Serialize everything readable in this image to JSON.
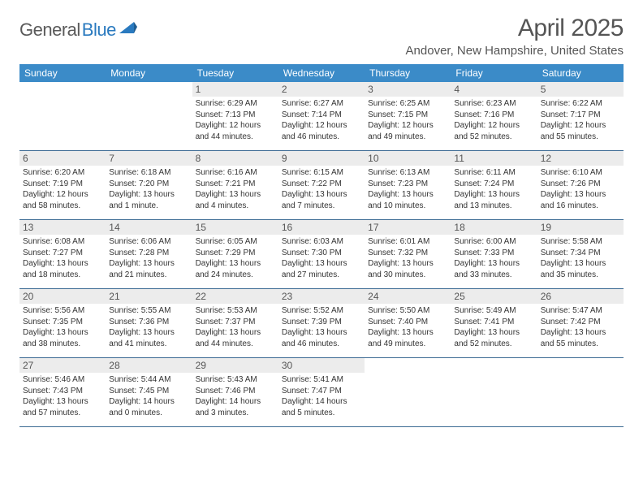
{
  "logo": {
    "text1": "General",
    "text2": "Blue"
  },
  "title": "April 2025",
  "location": "Andover, New Hampshire, United States",
  "header_bg": "#3b8bc8",
  "daynum_bg": "#ececec",
  "border_color": "#3b6a93",
  "dow": [
    "Sunday",
    "Monday",
    "Tuesday",
    "Wednesday",
    "Thursday",
    "Friday",
    "Saturday"
  ],
  "grid": [
    [
      null,
      null,
      {
        "n": "1",
        "sr": "6:29 AM",
        "ss": "7:13 PM",
        "dl": "12 hours and 44 minutes."
      },
      {
        "n": "2",
        "sr": "6:27 AM",
        "ss": "7:14 PM",
        "dl": "12 hours and 46 minutes."
      },
      {
        "n": "3",
        "sr": "6:25 AM",
        "ss": "7:15 PM",
        "dl": "12 hours and 49 minutes."
      },
      {
        "n": "4",
        "sr": "6:23 AM",
        "ss": "7:16 PM",
        "dl": "12 hours and 52 minutes."
      },
      {
        "n": "5",
        "sr": "6:22 AM",
        "ss": "7:17 PM",
        "dl": "12 hours and 55 minutes."
      }
    ],
    [
      {
        "n": "6",
        "sr": "6:20 AM",
        "ss": "7:19 PM",
        "dl": "12 hours and 58 minutes."
      },
      {
        "n": "7",
        "sr": "6:18 AM",
        "ss": "7:20 PM",
        "dl": "13 hours and 1 minute."
      },
      {
        "n": "8",
        "sr": "6:16 AM",
        "ss": "7:21 PM",
        "dl": "13 hours and 4 minutes."
      },
      {
        "n": "9",
        "sr": "6:15 AM",
        "ss": "7:22 PM",
        "dl": "13 hours and 7 minutes."
      },
      {
        "n": "10",
        "sr": "6:13 AM",
        "ss": "7:23 PM",
        "dl": "13 hours and 10 minutes."
      },
      {
        "n": "11",
        "sr": "6:11 AM",
        "ss": "7:24 PM",
        "dl": "13 hours and 13 minutes."
      },
      {
        "n": "12",
        "sr": "6:10 AM",
        "ss": "7:26 PM",
        "dl": "13 hours and 16 minutes."
      }
    ],
    [
      {
        "n": "13",
        "sr": "6:08 AM",
        "ss": "7:27 PM",
        "dl": "13 hours and 18 minutes."
      },
      {
        "n": "14",
        "sr": "6:06 AM",
        "ss": "7:28 PM",
        "dl": "13 hours and 21 minutes."
      },
      {
        "n": "15",
        "sr": "6:05 AM",
        "ss": "7:29 PM",
        "dl": "13 hours and 24 minutes."
      },
      {
        "n": "16",
        "sr": "6:03 AM",
        "ss": "7:30 PM",
        "dl": "13 hours and 27 minutes."
      },
      {
        "n": "17",
        "sr": "6:01 AM",
        "ss": "7:32 PM",
        "dl": "13 hours and 30 minutes."
      },
      {
        "n": "18",
        "sr": "6:00 AM",
        "ss": "7:33 PM",
        "dl": "13 hours and 33 minutes."
      },
      {
        "n": "19",
        "sr": "5:58 AM",
        "ss": "7:34 PM",
        "dl": "13 hours and 35 minutes."
      }
    ],
    [
      {
        "n": "20",
        "sr": "5:56 AM",
        "ss": "7:35 PM",
        "dl": "13 hours and 38 minutes."
      },
      {
        "n": "21",
        "sr": "5:55 AM",
        "ss": "7:36 PM",
        "dl": "13 hours and 41 minutes."
      },
      {
        "n": "22",
        "sr": "5:53 AM",
        "ss": "7:37 PM",
        "dl": "13 hours and 44 minutes."
      },
      {
        "n": "23",
        "sr": "5:52 AM",
        "ss": "7:39 PM",
        "dl": "13 hours and 46 minutes."
      },
      {
        "n": "24",
        "sr": "5:50 AM",
        "ss": "7:40 PM",
        "dl": "13 hours and 49 minutes."
      },
      {
        "n": "25",
        "sr": "5:49 AM",
        "ss": "7:41 PM",
        "dl": "13 hours and 52 minutes."
      },
      {
        "n": "26",
        "sr": "5:47 AM",
        "ss": "7:42 PM",
        "dl": "13 hours and 55 minutes."
      }
    ],
    [
      {
        "n": "27",
        "sr": "5:46 AM",
        "ss": "7:43 PM",
        "dl": "13 hours and 57 minutes."
      },
      {
        "n": "28",
        "sr": "5:44 AM",
        "ss": "7:45 PM",
        "dl": "14 hours and 0 minutes."
      },
      {
        "n": "29",
        "sr": "5:43 AM",
        "ss": "7:46 PM",
        "dl": "14 hours and 3 minutes."
      },
      {
        "n": "30",
        "sr": "5:41 AM",
        "ss": "7:47 PM",
        "dl": "14 hours and 5 minutes."
      },
      null,
      null,
      null
    ]
  ],
  "labels": {
    "sunrise": "Sunrise:",
    "sunset": "Sunset:",
    "daylight": "Daylight:"
  }
}
